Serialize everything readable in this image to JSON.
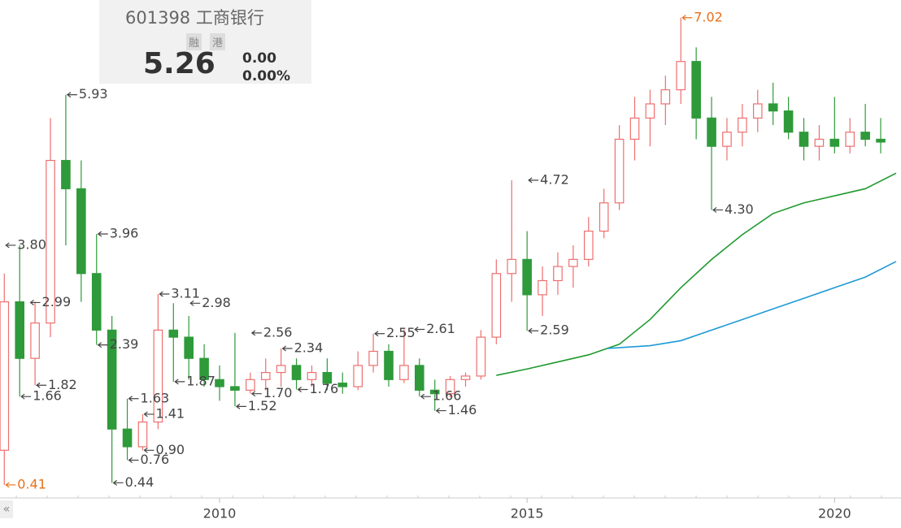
{
  "quote": {
    "code_name": "601398 工商银行",
    "badges": [
      "融",
      "港"
    ],
    "price": "5.26",
    "change": "0.00",
    "change_pct": "0.00%",
    "nav": "«"
  },
  "chart_data": {
    "type": "candlestick",
    "xlim": [
      2006.43,
      2021.08
    ],
    "ylim": [
      0.26,
      7.27
    ],
    "xticks": [
      2010,
      2015,
      2020
    ],
    "up_color": "#ee6f6f",
    "down_color": "#2e9a3a",
    "x": [
      2006.5,
      2006.75,
      2007.0,
      2007.25,
      2007.5,
      2007.75,
      2008.0,
      2008.25,
      2008.5,
      2008.75,
      2009.0,
      2009.25,
      2009.5,
      2009.75,
      2010.0,
      2010.25,
      2010.5,
      2010.75,
      2011.0,
      2011.25,
      2011.5,
      2011.75,
      2012.0,
      2012.25,
      2012.5,
      2012.75,
      2013.0,
      2013.25,
      2013.5,
      2013.75,
      2014.0,
      2014.25,
      2014.5,
      2014.75,
      2015.0,
      2015.25,
      2015.5,
      2015.75,
      2016.0,
      2016.25,
      2016.5,
      2016.75,
      2017.0,
      2017.25,
      2017.5,
      2017.75,
      2018.0,
      2018.25,
      2018.5,
      2018.75,
      2019.0,
      2019.25,
      2019.5,
      2019.75,
      2020.0,
      2020.25,
      2020.5,
      2020.75
    ],
    "open": [
      0.9,
      3.0,
      2.2,
      2.7,
      5.0,
      4.6,
      3.4,
      2.6,
      1.2,
      0.95,
      1.3,
      2.6,
      2.5,
      2.2,
      1.9,
      1.8,
      1.75,
      1.9,
      2.0,
      2.1,
      1.9,
      2.0,
      1.85,
      1.8,
      2.1,
      2.3,
      1.9,
      2.1,
      1.75,
      1.7,
      1.9,
      1.95,
      2.5,
      3.4,
      3.6,
      3.1,
      3.3,
      3.5,
      3.6,
      4.0,
      4.4,
      5.3,
      5.6,
      5.8,
      6.0,
      6.4,
      5.6,
      5.2,
      5.4,
      5.6,
      5.8,
      5.7,
      5.4,
      5.2,
      5.3,
      5.2,
      5.4,
      5.3
    ],
    "high": [
      3.4,
      3.8,
      3.0,
      5.6,
      5.93,
      5.0,
      3.96,
      2.8,
      1.63,
      1.41,
      3.11,
      2.98,
      2.8,
      2.4,
      2.1,
      2.56,
      2.0,
      2.2,
      2.34,
      2.2,
      2.1,
      2.2,
      2.0,
      2.3,
      2.55,
      2.4,
      2.61,
      2.2,
      1.9,
      1.95,
      2.0,
      2.6,
      3.6,
      4.72,
      4.0,
      3.5,
      3.7,
      3.8,
      4.2,
      4.6,
      5.5,
      5.9,
      6.0,
      6.2,
      7.02,
      6.6,
      5.9,
      5.6,
      5.8,
      6.0,
      6.1,
      5.9,
      5.6,
      5.5,
      5.9,
      5.6,
      5.8,
      5.6
    ],
    "low": [
      0.41,
      1.66,
      1.82,
      2.5,
      3.8,
      3.0,
      2.39,
      0.44,
      0.76,
      0.9,
      1.2,
      1.87,
      1.9,
      1.8,
      1.6,
      1.52,
      1.7,
      1.75,
      1.8,
      1.76,
      1.8,
      1.75,
      1.7,
      1.75,
      2.0,
      1.8,
      1.85,
      1.66,
      1.46,
      1.65,
      1.8,
      1.9,
      2.4,
      3.0,
      2.59,
      2.8,
      3.1,
      3.2,
      3.5,
      3.9,
      4.3,
      5.0,
      5.2,
      5.5,
      5.8,
      5.3,
      4.3,
      5.0,
      5.2,
      5.4,
      5.5,
      5.3,
      5.0,
      5.0,
      5.1,
      5.1,
      5.2,
      5.1
    ],
    "close": [
      3.0,
      2.2,
      2.7,
      5.0,
      4.6,
      3.4,
      2.6,
      1.2,
      0.95,
      1.3,
      2.6,
      2.5,
      2.2,
      1.9,
      1.8,
      1.75,
      1.9,
      2.0,
      2.1,
      1.9,
      2.0,
      1.85,
      1.8,
      2.1,
      2.3,
      1.9,
      2.1,
      1.75,
      1.7,
      1.9,
      1.95,
      2.5,
      3.4,
      3.6,
      3.1,
      3.3,
      3.5,
      3.6,
      4.0,
      4.4,
      5.3,
      5.6,
      5.8,
      6.0,
      6.4,
      5.6,
      5.2,
      5.4,
      5.6,
      5.8,
      5.7,
      5.4,
      5.2,
      5.3,
      5.2,
      5.4,
      5.3,
      5.26
    ],
    "lines": [
      {
        "color": "#1f9a2f",
        "x": [
          2014.5,
          2015.0,
          2015.5,
          2016.0,
          2016.5,
          2017.0,
          2017.5,
          2018.0,
          2018.5,
          2019.0,
          2019.5,
          2020.0,
          2020.5,
          2021.0
        ],
        "values": [
          1.96,
          2.05,
          2.15,
          2.25,
          2.4,
          2.75,
          3.2,
          3.6,
          3.95,
          4.25,
          4.4,
          4.5,
          4.6,
          4.82
        ]
      },
      {
        "color": "#1e9ad6",
        "x": [
          2016.3,
          2017.0,
          2017.5,
          2018.0,
          2018.5,
          2019.0,
          2019.5,
          2020.0,
          2020.5,
          2021.0
        ],
        "values": [
          2.34,
          2.38,
          2.45,
          2.6,
          2.75,
          2.9,
          3.05,
          3.2,
          3.35,
          3.57
        ]
      }
    ],
    "annotations": [
      {
        "x": 2007.5,
        "value": 5.93,
        "label": "5.93",
        "color": "#444444"
      },
      {
        "x": 2006.5,
        "value": 3.8,
        "label": "3.80",
        "color": "#444444"
      },
      {
        "x": 2006.9,
        "value": 2.99,
        "label": "2.99",
        "color": "#444444"
      },
      {
        "x": 2006.75,
        "value": 1.66,
        "label": "1.66",
        "color": "#444444"
      },
      {
        "x": 2007.0,
        "value": 1.82,
        "label": "1.82",
        "color": "#444444"
      },
      {
        "x": 2008.0,
        "value": 3.96,
        "label": "3.96",
        "color": "#444444"
      },
      {
        "x": 2008.0,
        "value": 2.39,
        "label": "2.39",
        "color": "#444444"
      },
      {
        "x": 2008.5,
        "value": 1.63,
        "label": "1.63",
        "color": "#444444"
      },
      {
        "x": 2008.75,
        "value": 1.41,
        "label": "1.41",
        "color": "#444444"
      },
      {
        "x": 2008.75,
        "value": 0.9,
        "label": "0.90",
        "color": "#444444"
      },
      {
        "x": 2008.5,
        "value": 0.76,
        "label": "0.76",
        "color": "#444444"
      },
      {
        "x": 2008.25,
        "value": 0.44,
        "label": "0.44",
        "color": "#444444"
      },
      {
        "x": 2006.5,
        "value": 0.41,
        "label": "0.41",
        "color": "#e8701a"
      },
      {
        "x": 2009.0,
        "value": 3.11,
        "label": "3.11",
        "color": "#444444"
      },
      {
        "x": 2009.5,
        "value": 2.98,
        "label": "2.98",
        "color": "#444444"
      },
      {
        "x": 2009.25,
        "value": 1.87,
        "label": "1.87",
        "color": "#444444"
      },
      {
        "x": 2010.5,
        "value": 2.56,
        "label": "2.56",
        "color": "#444444"
      },
      {
        "x": 2010.25,
        "value": 1.52,
        "label": "1.52",
        "color": "#444444"
      },
      {
        "x": 2010.5,
        "value": 1.7,
        "label": "1.70",
        "color": "#444444"
      },
      {
        "x": 2011.0,
        "value": 2.34,
        "label": "2.34",
        "color": "#444444"
      },
      {
        "x": 2011.25,
        "value": 1.76,
        "label": "1.76",
        "color": "#444444"
      },
      {
        "x": 2012.5,
        "value": 2.55,
        "label": "2.55",
        "color": "#444444"
      },
      {
        "x": 2013.15,
        "value": 2.61,
        "label": "2.61",
        "color": "#444444"
      },
      {
        "x": 2013.25,
        "value": 1.66,
        "label": "1.66",
        "color": "#444444"
      },
      {
        "x": 2013.5,
        "value": 1.46,
        "label": "1.46",
        "color": "#444444"
      },
      {
        "x": 2015.0,
        "value": 4.72,
        "label": "4.72",
        "color": "#444444"
      },
      {
        "x": 2015.0,
        "value": 2.59,
        "label": "2.59",
        "color": "#444444"
      },
      {
        "x": 2017.5,
        "value": 7.02,
        "label": "7.02",
        "color": "#e8701a"
      },
      {
        "x": 2018.0,
        "value": 4.3,
        "label": "4.30",
        "color": "#444444"
      }
    ]
  }
}
